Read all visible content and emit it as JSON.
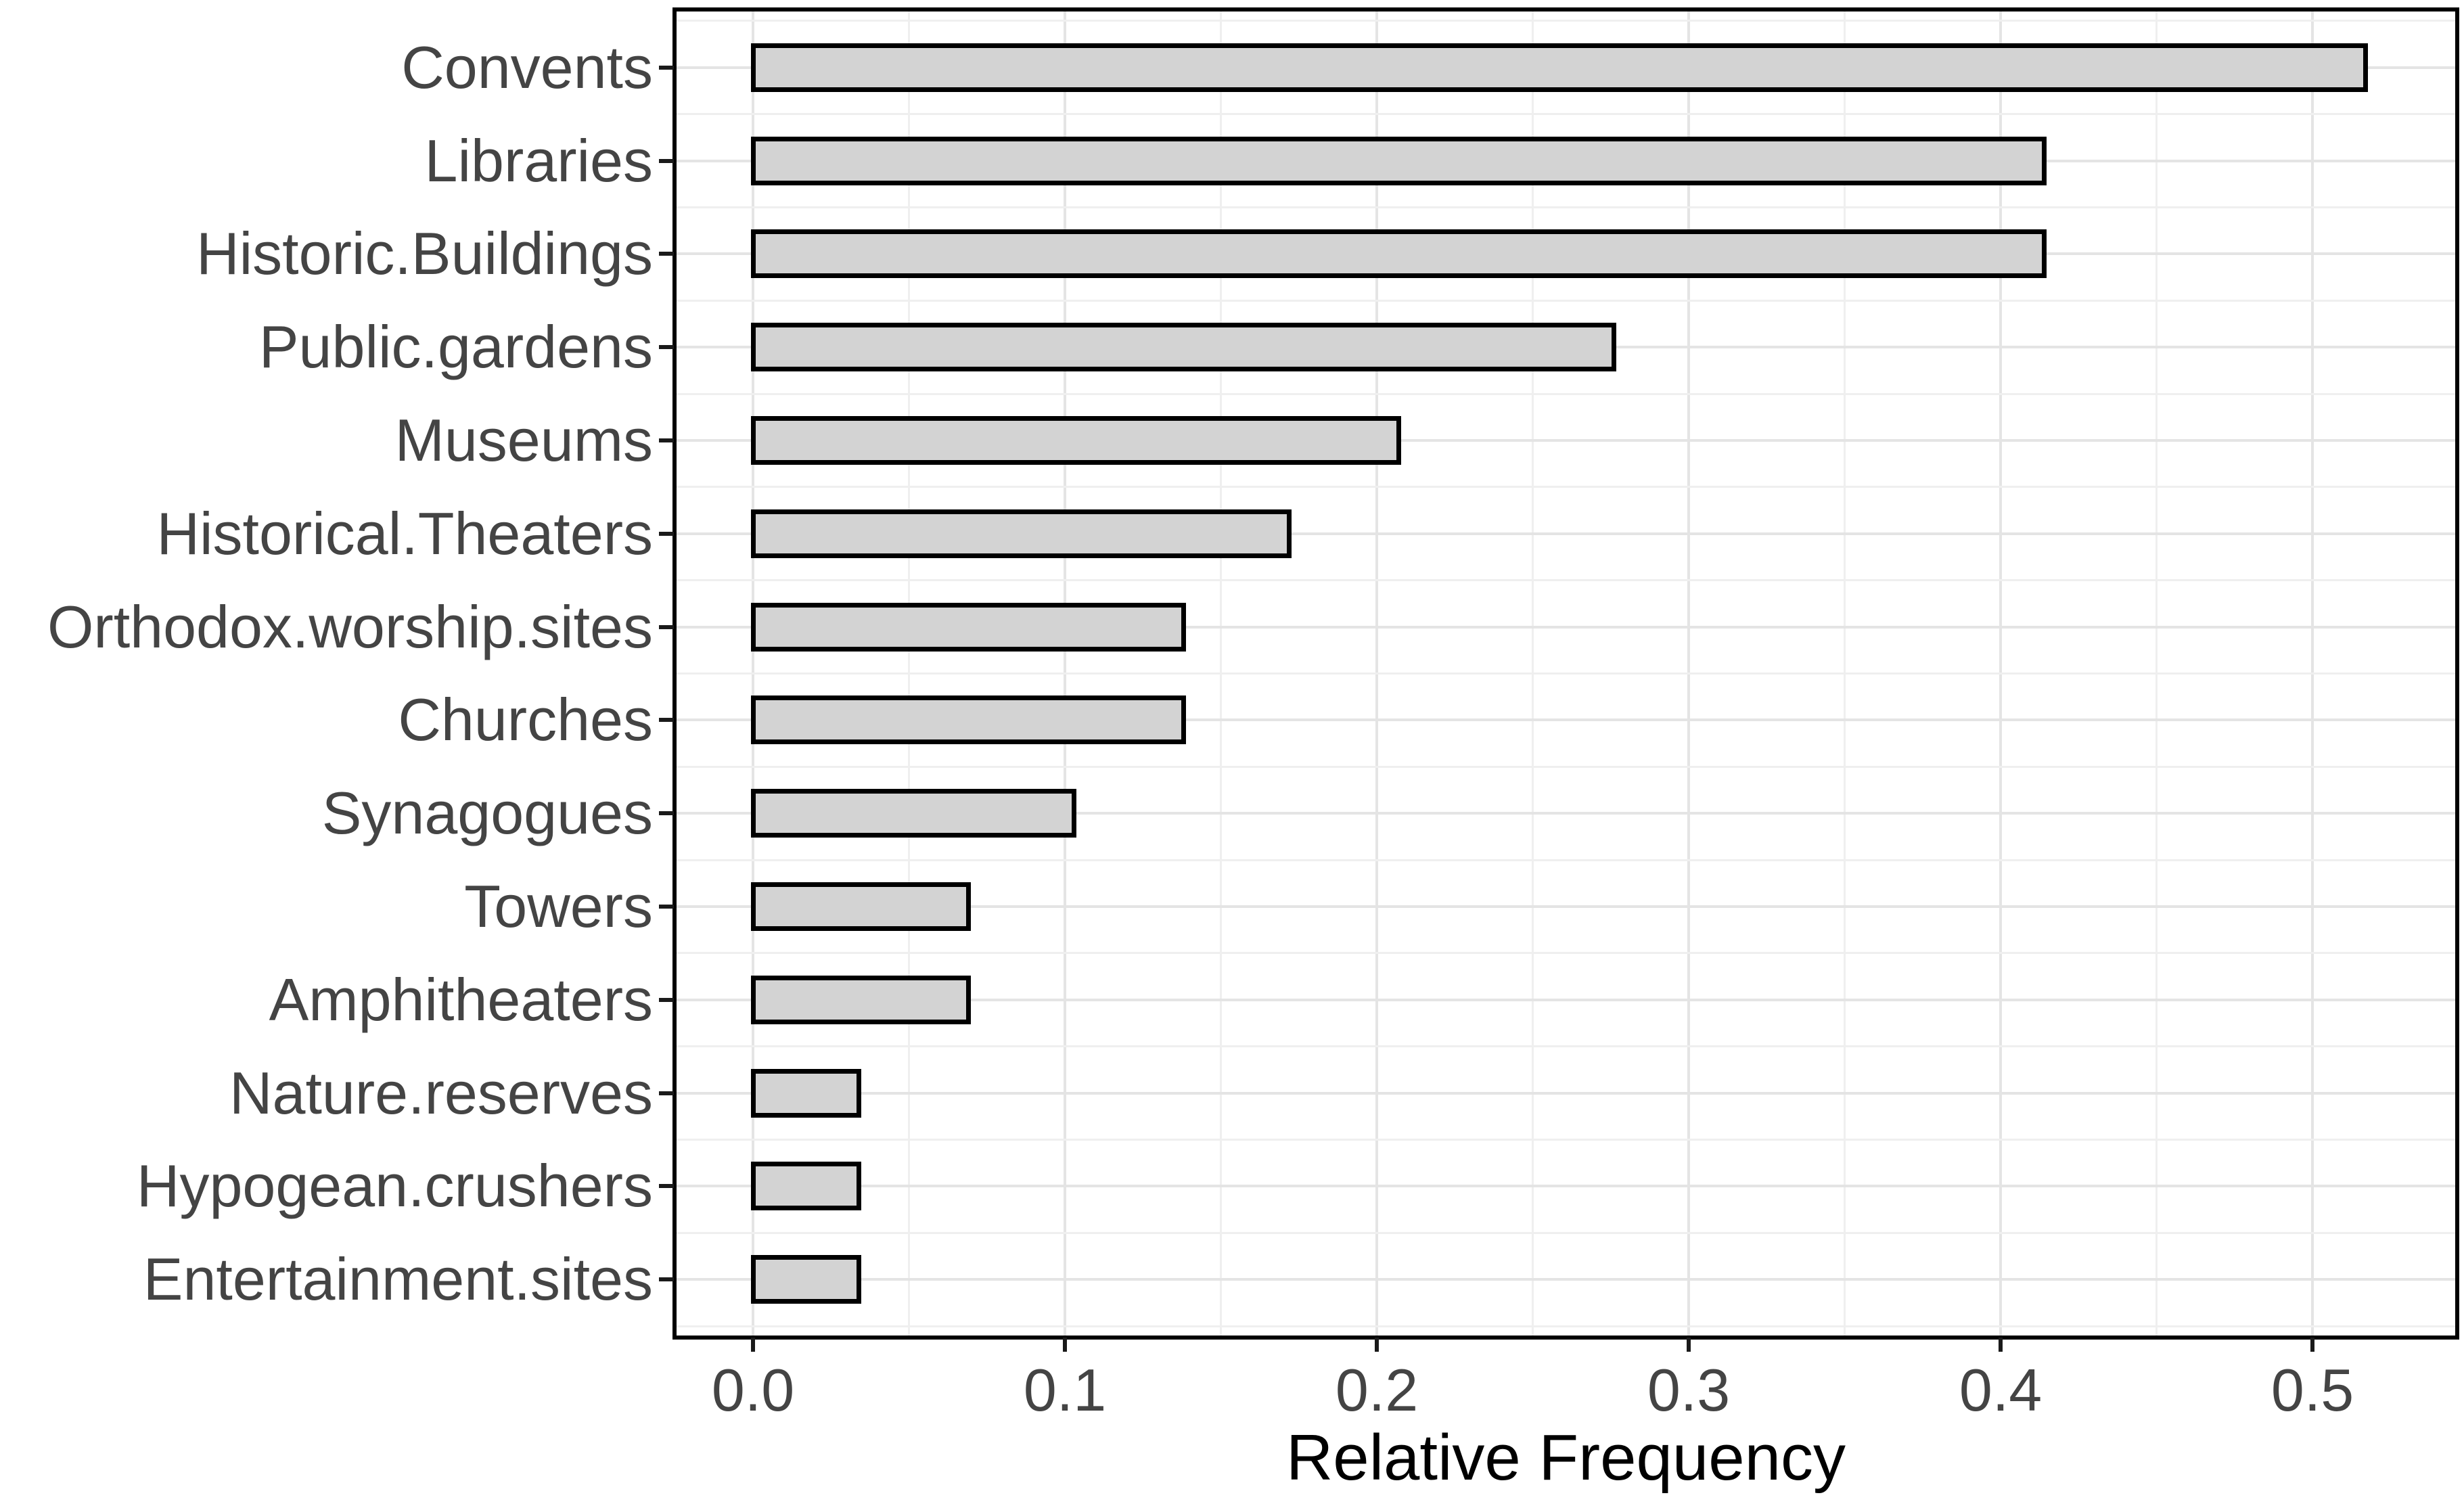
{
  "chart_data": {
    "type": "bar",
    "orientation": "horizontal",
    "title": "",
    "xlabel": "Relative Frequency",
    "ylabel": "",
    "categories": [
      "Convents",
      "Libraries",
      "Historic.Buildings",
      "Public.gardens",
      "Museums",
      "Historical.Theaters",
      "Orthodox.worship.sites",
      "Churches",
      "Synagogues",
      "Towers",
      "Amphitheaters",
      "Nature.reserves",
      "Hypogean.crushers",
      "Entertainment.sites"
    ],
    "values": [
      0.517,
      0.414,
      0.414,
      0.276,
      0.207,
      0.172,
      0.138,
      0.138,
      0.103,
      0.069,
      0.069,
      0.034,
      0.034,
      0.034
    ],
    "xlim": [
      -0.025,
      0.545
    ],
    "x_ticks": [
      0.0,
      0.1,
      0.2,
      0.3,
      0.4,
      0.5
    ],
    "x_tick_labels": [
      "0.0",
      "0.1",
      "0.2",
      "0.3",
      "0.4",
      "0.5"
    ],
    "x_minor_ticks": [
      0.05,
      0.15,
      0.25,
      0.35,
      0.45
    ],
    "grid": true,
    "legend_position": "none",
    "colors": {
      "bar_fill": "#d3d3d3",
      "bar_border": "#000000",
      "panel_border": "#000000",
      "gridline_major": "#e4e4e4",
      "gridline_minor": "#efefef",
      "axis_text": "#444444",
      "axis_title": "#000000",
      "background": "#ffffff"
    }
  }
}
